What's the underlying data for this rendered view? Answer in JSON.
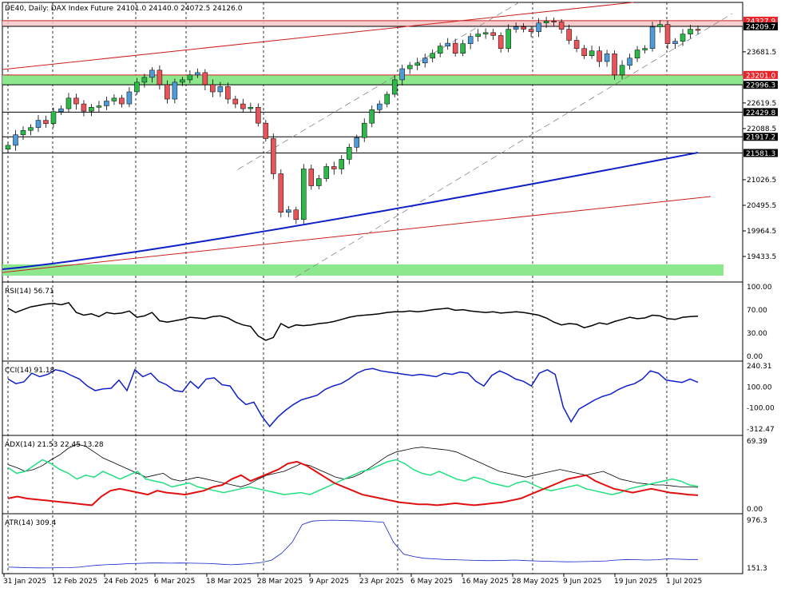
{
  "header": {
    "symbol": "DE40, Daily:  DAX Index Future",
    "ohlc": "24101.0 24140.0 24072.5 24126.0"
  },
  "colors": {
    "up": "#4f9bd8",
    "down": "#e8545a",
    "green": "#2db84a",
    "zoneGreen": "#8ce88c",
    "zoneRed": "#f4c6c6",
    "ma": "#1020c8",
    "trend": "#cc2020",
    "rsi": "#000000",
    "cci": "#1020c8",
    "adx": "#000000",
    "pdi": "#20e080",
    "mdi": "#e01010",
    "atr": "#1020c8"
  },
  "chart_data": {
    "type": "candlestick",
    "yTicks": [
      "24209.7",
      "23681.5",
      "23201.0",
      "22996.3",
      "22619.5",
      "22429.8",
      "22088.5",
      "21917.2",
      "21581.3",
      "21026.5",
      "20495.5",
      "19964.5",
      "19433.5"
    ],
    "xLabels": [
      "31 Jan 2025",
      "12 Feb 2025",
      "24 Feb 2025",
      "6 Mar 2025",
      "18 Mar 2025",
      "28 Mar 2025",
      "9 Apr 2025",
      "23 Apr 2025",
      "6 May 2025",
      "16 May 2025",
      "28 May 2025",
      "9 Jun 2025",
      "19 Jun 2025",
      "1 Jul 2025"
    ],
    "levels": [
      {
        "label": "24327.9",
        "style": "red"
      },
      {
        "label": "24209.7",
        "style": "black"
      },
      {
        "label": "23201.0",
        "style": "red"
      },
      {
        "label": "22996.3",
        "style": "black"
      },
      {
        "label": "22429.8",
        "style": "black"
      },
      {
        "label": "21917.2",
        "style": "black"
      },
      {
        "label": "21581.3",
        "style": "black"
      }
    ],
    "closes": [
      21740,
      21960,
      22050,
      22110,
      22260,
      22190,
      22440,
      22500,
      22720,
      22600,
      22450,
      22530,
      22560,
      22660,
      22720,
      22600,
      22850,
      23050,
      23150,
      23300,
      23000,
      22700,
      23050,
      23100,
      23200,
      23250,
      23000,
      22850,
      22960,
      22700,
      22600,
      22500,
      22530,
      22200,
      21880,
      21150,
      20350,
      20400,
      20200,
      21250,
      20900,
      21050,
      21300,
      21250,
      21450,
      21700,
      21900,
      22200,
      22480,
      22600,
      22800,
      23100,
      23330,
      23400,
      23450,
      23550,
      23650,
      23800,
      23860,
      23650,
      23850,
      24000,
      24050,
      24080,
      24020,
      23750,
      24150,
      24200,
      24150,
      24100,
      24280,
      24320,
      24300,
      24150,
      23920,
      23750,
      23600,
      23700,
      23480,
      23640,
      23200,
      23400,
      23550,
      23720,
      23750,
      24200,
      24250,
      23850,
      23900,
      24050,
      24150,
      24126
    ],
    "rsi": {
      "label": "RSI(14) 56.71",
      "ticks": [
        "100.00",
        "70.00",
        "30.00",
        "0.00"
      ]
    },
    "cci": {
      "label": "CCI(14) 91.18",
      "ticks": [
        "240.31",
        "100.00",
        "-100.00",
        "-312.47"
      ]
    },
    "adx": {
      "label": "ADX(14) 21.53 22.45 13.28",
      "ticks": [
        "69.39",
        "0.00"
      ]
    },
    "atr": {
      "label": "ATR(14) 309.4",
      "ticks": [
        "976.3",
        "151.3"
      ]
    }
  }
}
